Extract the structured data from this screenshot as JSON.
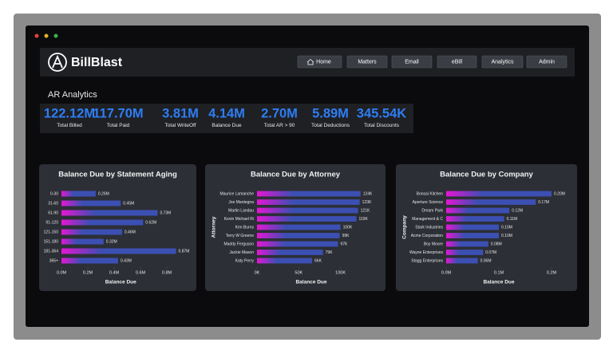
{
  "header": {
    "brand": "BillBlast",
    "nav": [
      "Home",
      "Matters",
      "Email",
      "eBill",
      "Analytics",
      "Admin"
    ]
  },
  "section_title": "AR Analytics",
  "kpis": [
    {
      "value": "122.12M",
      "label": "Total Billed"
    },
    {
      "value": "117.70M",
      "label": "Total Paid"
    },
    {
      "value": "3.81M",
      "label": "Total WriteOff"
    },
    {
      "value": "4.14M",
      "label": "Balance Due"
    },
    {
      "value": "2.70M",
      "label": "Total AR > 90"
    },
    {
      "value": "5.89M",
      "label": "Total Deductions"
    },
    {
      "value": "345.54K",
      "label": "Total Discounts"
    }
  ],
  "chart_data": [
    {
      "type": "bar",
      "orientation": "horizontal",
      "title": "Balance Due by Statement Aging",
      "categories": [
        "0-30",
        "31-60",
        "61-90",
        "91-120",
        "121-150",
        "151-180",
        "181-364",
        "365+"
      ],
      "values": [
        0.26,
        0.45,
        0.73,
        0.62,
        0.46,
        0.32,
        0.87,
        0.43
      ],
      "value_labels": [
        "0.26M",
        "0.45M",
        "0.73M",
        "0.62M",
        "0.46M",
        "0.32M",
        "0.87M",
        "0.43M"
      ],
      "xlim": [
        0,
        0.9
      ],
      "xticks": [
        {
          "value": 0,
          "label": "0.0M"
        },
        {
          "value": 0.2,
          "label": "0.2M"
        },
        {
          "value": 0.4,
          "label": "0.4M"
        },
        {
          "value": 0.6,
          "label": "0.6M"
        },
        {
          "value": 0.8,
          "label": "0.8M"
        }
      ],
      "x_label": "Balance Due",
      "colors": [
        "#e416d4",
        "#3c4fb3"
      ]
    },
    {
      "type": "bar",
      "orientation": "horizontal",
      "title": "Balance Due by Attorney",
      "categories": [
        "Maurice Lamanche",
        "Joe Mantegna",
        "Martin Landau",
        "Kevin Michael Ri",
        "Ken Burns",
        "Terry W Greene",
        "Maddy Ferguson",
        "Jackie Mason",
        "Katy Perry"
      ],
      "values": [
        124,
        123,
        121,
        119,
        100,
        99,
        97,
        79,
        66
      ],
      "value_labels": [
        "124K",
        "123K",
        "121K",
        "119K",
        "100K",
        "99K",
        "97K",
        "79K",
        "66K"
      ],
      "xlim": [
        0,
        130
      ],
      "xticks": [
        {
          "value": 0,
          "label": "0K"
        },
        {
          "value": 50,
          "label": "50K"
        },
        {
          "value": 100,
          "label": "100K"
        }
      ],
      "x_label": "Balance Due",
      "y_label": "Attorney",
      "colors": [
        "#e416d4",
        "#3c4fb3"
      ]
    },
    {
      "type": "bar",
      "orientation": "horizontal",
      "title": "Balance Due by Company",
      "categories": [
        "Bonsai Kitchen",
        "Aperture Science",
        "Dream Park",
        "Management & C",
        "Stark Industries",
        "Acme Corporation",
        "Boy Moore",
        "Wayne Enterprises",
        "Stagg Enterprises"
      ],
      "values": [
        0.2,
        0.17,
        0.12,
        0.11,
        0.1,
        0.1,
        0.08,
        0.07,
        0.06
      ],
      "value_labels": [
        "0.20M",
        "0.17M",
        "0.12M",
        "0.11M",
        "0.10M",
        "0.10M",
        "0.08M",
        "0.07M",
        "0.06M"
      ],
      "xlim": [
        0,
        0.2
      ],
      "xticks": [
        {
          "value": 0,
          "label": "0.0M"
        },
        {
          "value": 0.1,
          "label": "0.1M"
        },
        {
          "value": 0.2,
          "label": "0.2M"
        }
      ],
      "x_label": "Balance Due",
      "y_label": "Company",
      "colors": [
        "#e416d4",
        "#3c4fb3"
      ]
    }
  ]
}
